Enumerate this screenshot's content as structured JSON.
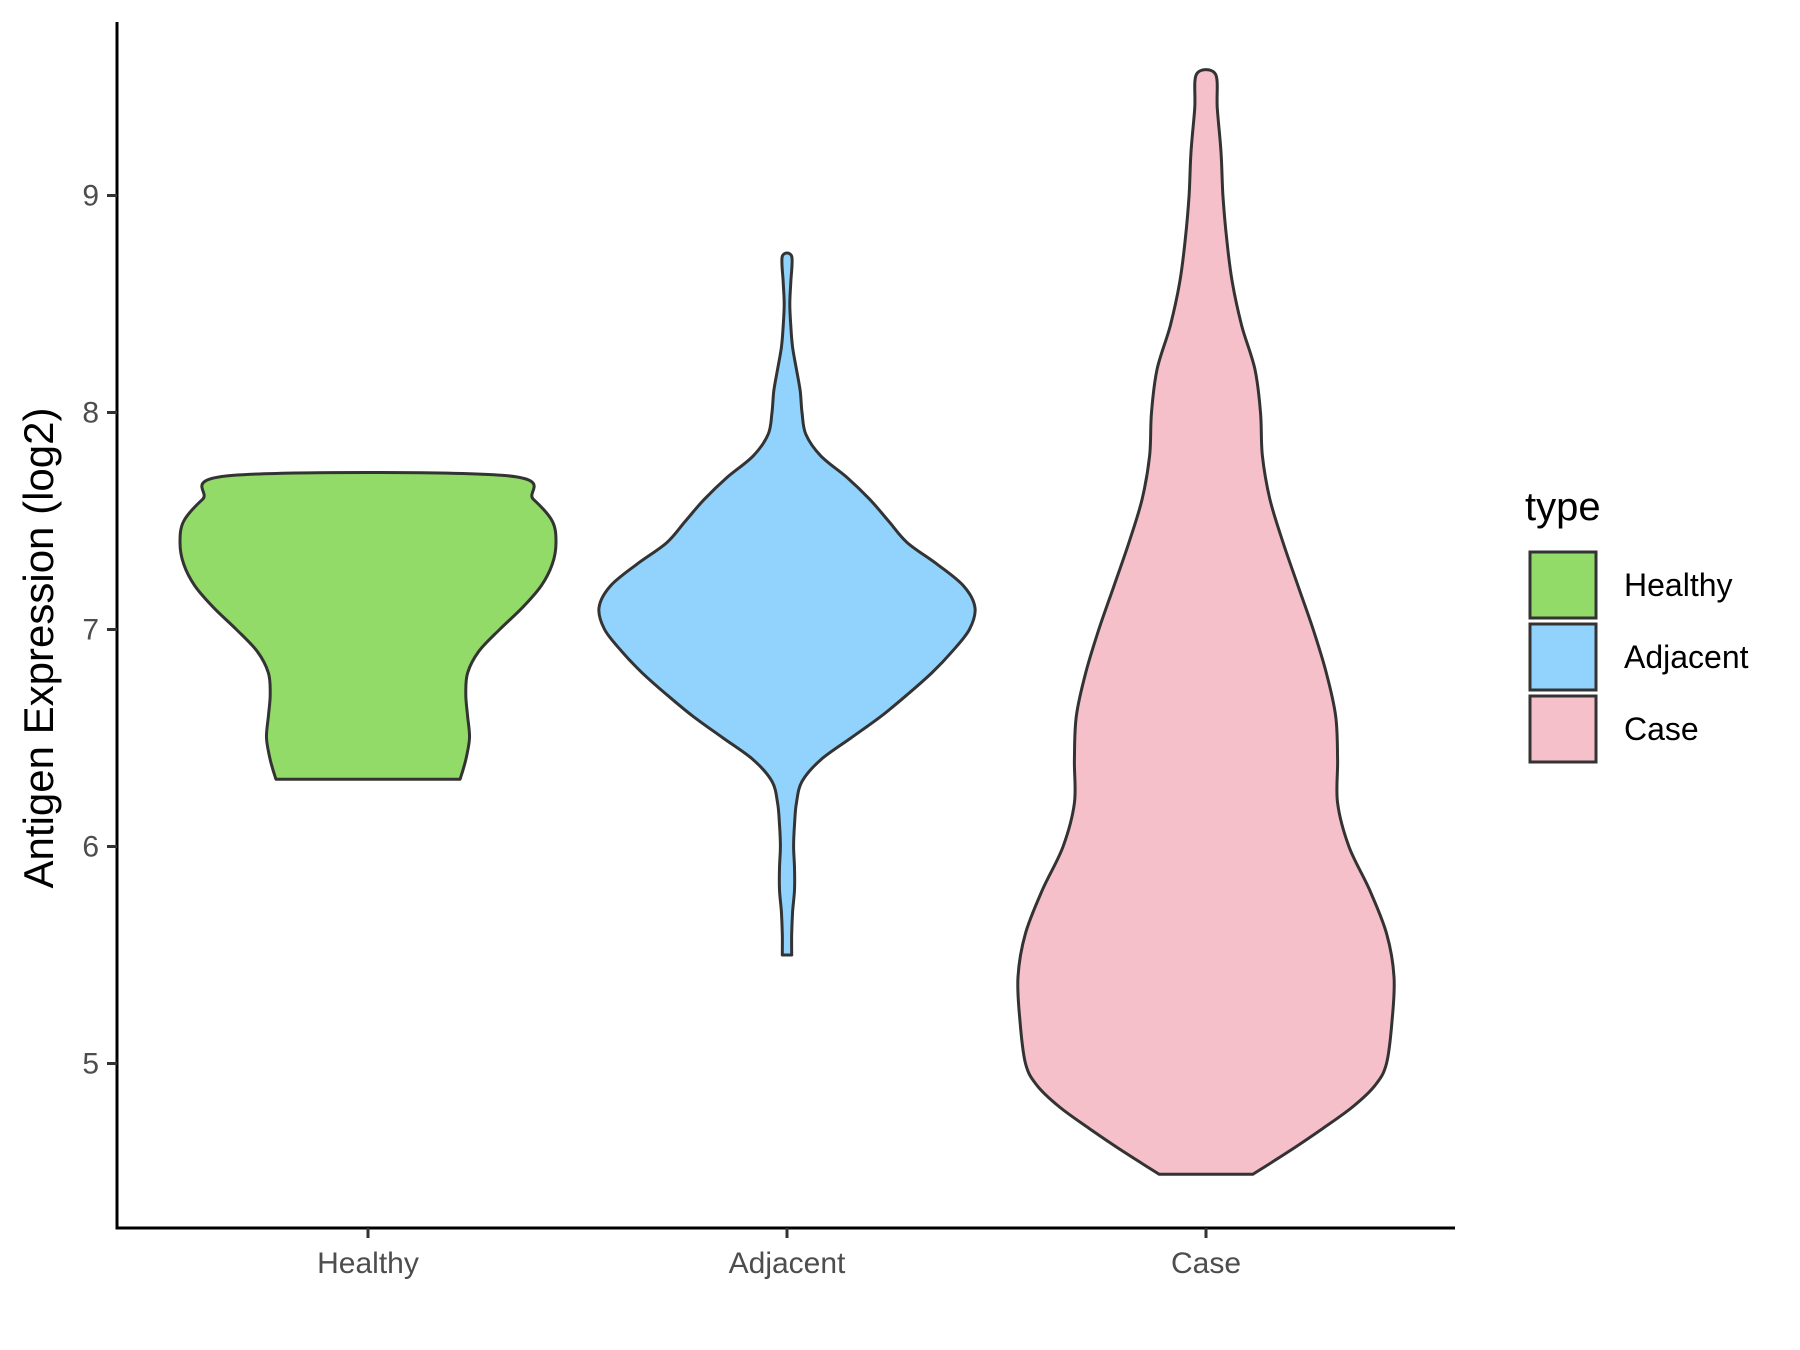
{
  "chart_data": {
    "type": "violin",
    "title": "",
    "xlabel": "",
    "ylabel": "Antigen Expression (log2)",
    "ylim": [
      4.4,
      9.8
    ],
    "yticks": [
      5,
      6,
      7,
      8,
      9
    ],
    "categories": [
      "Healthy",
      "Adjacent",
      "Case"
    ],
    "grid": false,
    "legend": {
      "title": "type",
      "placement": "right",
      "entries": [
        "Healthy",
        "Adjacent",
        "Case"
      ]
    },
    "colors": {
      "Healthy": "#93DB69",
      "Adjacent": "#92D3FE",
      "Case": "#F6C0CB",
      "outline": "#333333",
      "axis": "#000000"
    },
    "series": [
      {
        "name": "Healthy",
        "min": 6.31,
        "max": 7.71,
        "density": [
          [
            6.31,
            0.49
          ],
          [
            6.4,
            0.52
          ],
          [
            6.5,
            0.54
          ],
          [
            6.6,
            0.53
          ],
          [
            6.7,
            0.52
          ],
          [
            6.8,
            0.53
          ],
          [
            6.9,
            0.59
          ],
          [
            7.0,
            0.7
          ],
          [
            7.1,
            0.82
          ],
          [
            7.2,
            0.92
          ],
          [
            7.3,
            0.98
          ],
          [
            7.4,
            1.0
          ],
          [
            7.5,
            0.98
          ],
          [
            7.6,
            0.88
          ],
          [
            7.71,
            0.72
          ]
        ]
      },
      {
        "name": "Adjacent",
        "min": 5.5,
        "max": 8.72,
        "density": [
          [
            5.5,
            0.025
          ],
          [
            5.6,
            0.025
          ],
          [
            5.7,
            0.03
          ],
          [
            5.8,
            0.04
          ],
          [
            5.9,
            0.04
          ],
          [
            6.0,
            0.035
          ],
          [
            6.1,
            0.04
          ],
          [
            6.2,
            0.05
          ],
          [
            6.3,
            0.08
          ],
          [
            6.4,
            0.18
          ],
          [
            6.5,
            0.34
          ],
          [
            6.6,
            0.5
          ],
          [
            6.7,
            0.64
          ],
          [
            6.8,
            0.77
          ],
          [
            6.9,
            0.88
          ],
          [
            7.0,
            0.97
          ],
          [
            7.1,
            1.0
          ],
          [
            7.2,
            0.94
          ],
          [
            7.3,
            0.8
          ],
          [
            7.4,
            0.64
          ],
          [
            7.5,
            0.54
          ],
          [
            7.6,
            0.44
          ],
          [
            7.7,
            0.32
          ],
          [
            7.8,
            0.18
          ],
          [
            7.9,
            0.1
          ],
          [
            8.0,
            0.08
          ],
          [
            8.1,
            0.07
          ],
          [
            8.2,
            0.05
          ],
          [
            8.3,
            0.03
          ],
          [
            8.4,
            0.02
          ],
          [
            8.5,
            0.015
          ],
          [
            8.6,
            0.02
          ],
          [
            8.72,
            0.025
          ]
        ]
      },
      {
        "name": "Case",
        "min": 4.49,
        "max": 9.56,
        "density": [
          [
            4.49,
            0.25
          ],
          [
            4.6,
            0.45
          ],
          [
            4.7,
            0.62
          ],
          [
            4.8,
            0.78
          ],
          [
            4.9,
            0.9
          ],
          [
            5.0,
            0.96
          ],
          [
            5.2,
            0.99
          ],
          [
            5.4,
            1.0
          ],
          [
            5.6,
            0.96
          ],
          [
            5.8,
            0.87
          ],
          [
            6.0,
            0.76
          ],
          [
            6.2,
            0.7
          ],
          [
            6.4,
            0.7
          ],
          [
            6.6,
            0.69
          ],
          [
            6.8,
            0.64
          ],
          [
            7.0,
            0.57
          ],
          [
            7.2,
            0.49
          ],
          [
            7.4,
            0.41
          ],
          [
            7.6,
            0.34
          ],
          [
            7.8,
            0.3
          ],
          [
            8.0,
            0.29
          ],
          [
            8.2,
            0.26
          ],
          [
            8.4,
            0.19
          ],
          [
            8.6,
            0.14
          ],
          [
            8.8,
            0.11
          ],
          [
            9.0,
            0.09
          ],
          [
            9.2,
            0.08
          ],
          [
            9.4,
            0.06
          ],
          [
            9.56,
            0.05
          ]
        ]
      }
    ]
  }
}
